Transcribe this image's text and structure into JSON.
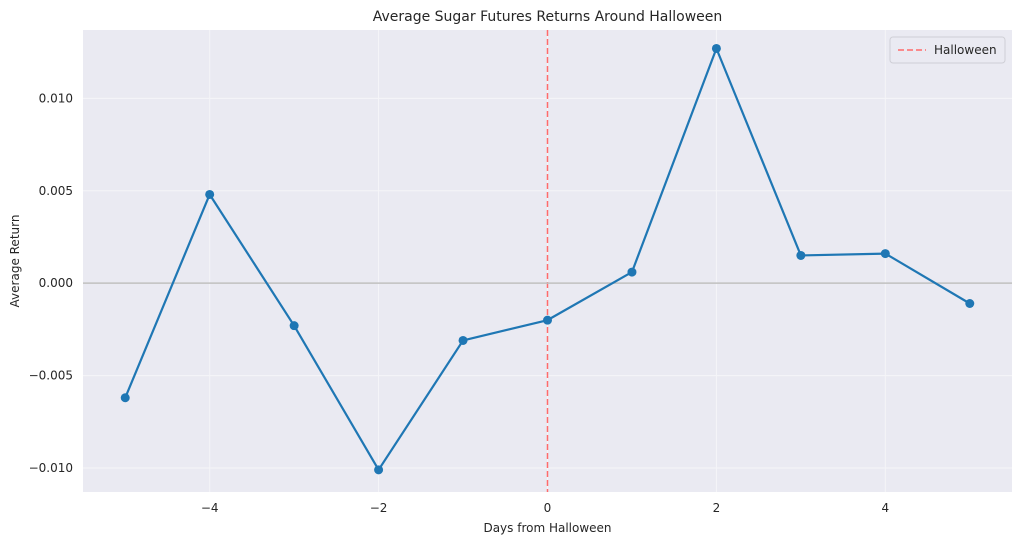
{
  "chart_data": {
    "type": "line",
    "title": "Average Sugar Futures Returns Around Halloween",
    "xlabel": "Days from Halloween",
    "ylabel": "Average Return",
    "xlim": [
      -5.5,
      5.5
    ],
    "ylim": [
      -0.0113,
      0.0137
    ],
    "x_ticks": [
      -4,
      -2,
      0,
      2,
      4
    ],
    "x_tick_labels": [
      "−4",
      "−2",
      "0",
      "2",
      "4"
    ],
    "y_ticks": [
      -0.01,
      -0.005,
      0.0,
      0.005,
      0.01
    ],
    "y_tick_labels": [
      "−0.010",
      "−0.005",
      "0.000",
      "0.005",
      "0.010"
    ],
    "grid": true,
    "legend_position": "top-right",
    "series": [
      {
        "x": [
          -5,
          -4,
          -3,
          -2,
          -1,
          0,
          1,
          2,
          3,
          4,
          5
        ],
        "values": [
          -0.0062,
          0.0048,
          -0.0023,
          -0.0101,
          -0.0031,
          -0.002,
          0.0006,
          0.0127,
          0.0015,
          0.0016,
          -0.0011
        ],
        "color": "#1f77b4",
        "marker": "circle"
      }
    ],
    "reference_lines": [
      {
        "orientation": "vertical",
        "x": 0,
        "name": "Halloween",
        "color": "#ff6b6b",
        "style": "dashed"
      },
      {
        "orientation": "horizontal",
        "y": 0,
        "color": "#c0c0c0",
        "style": "solid"
      }
    ],
    "colors": {
      "plot_background": "#eaeaf2",
      "grid": "#f5f5f8"
    }
  }
}
